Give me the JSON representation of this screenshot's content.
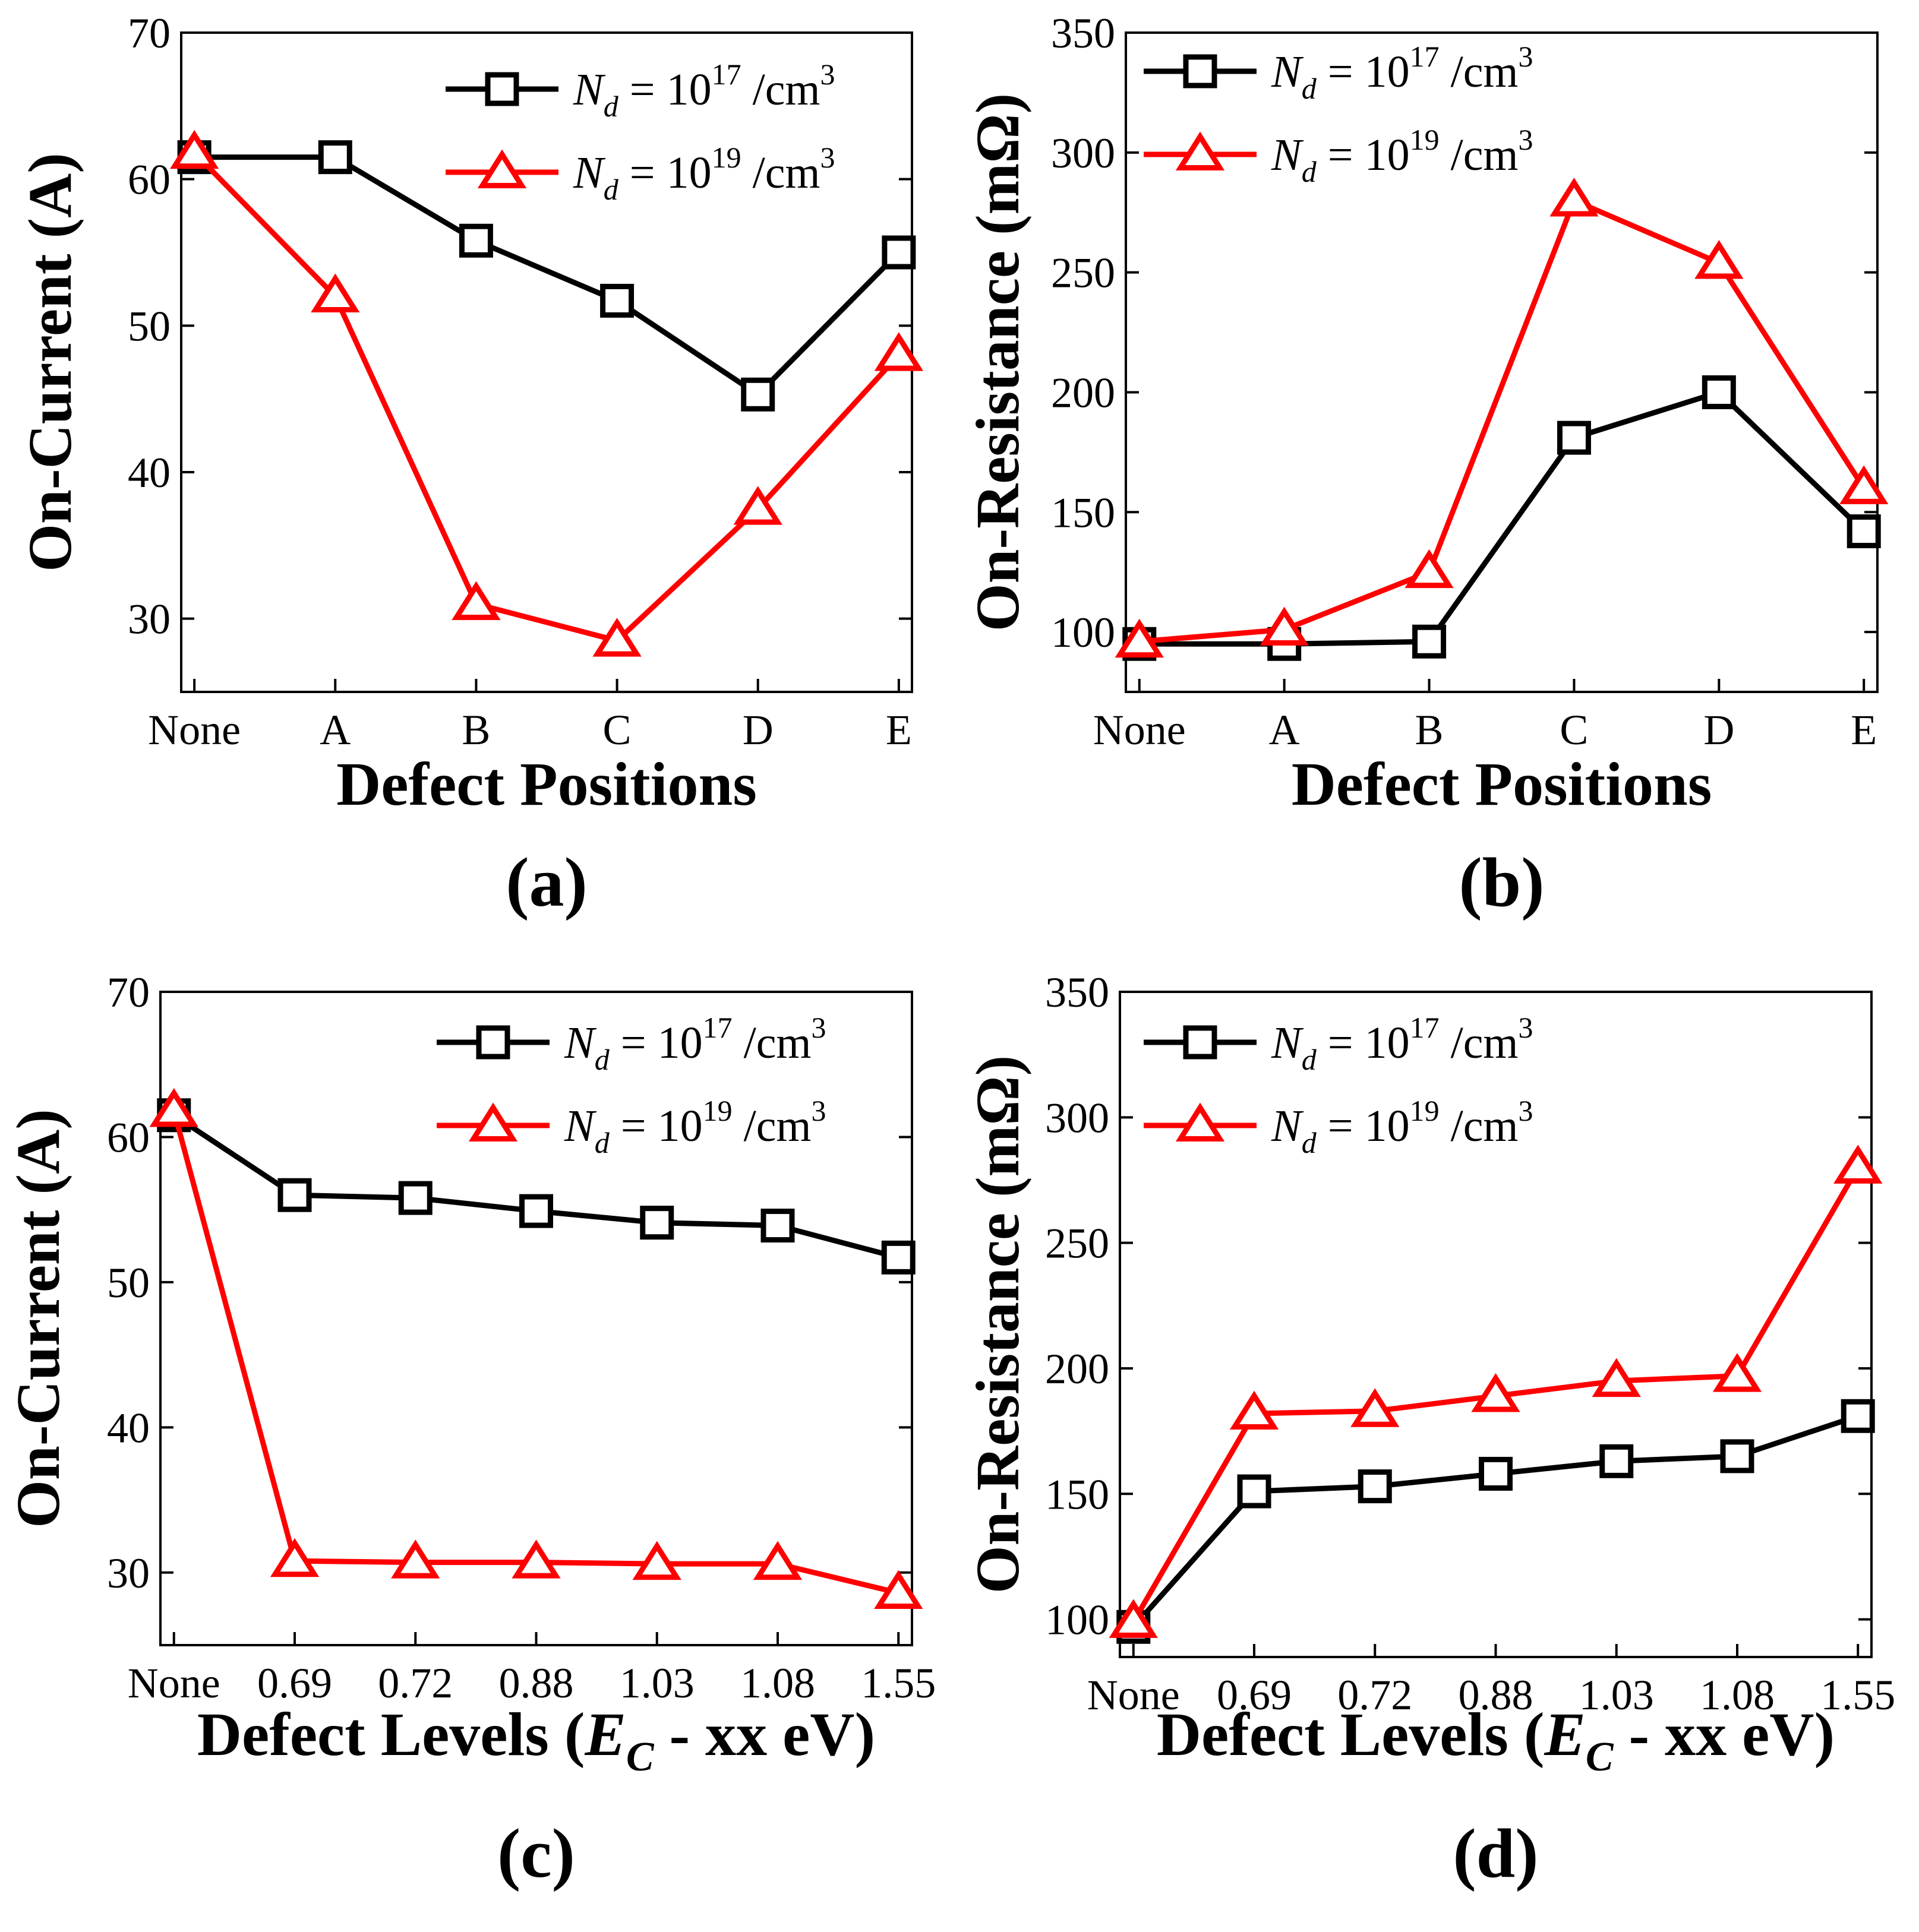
{
  "chart_data": [
    {
      "type": "line",
      "panel_label": "(a)",
      "xlabel": "Defect Positions",
      "ylabel": "On-Current (A)",
      "categories": [
        "None",
        "A",
        "B",
        "C",
        "D",
        "E"
      ],
      "ylim": [
        25,
        70
      ],
      "yticks": [
        30,
        40,
        50,
        60,
        70
      ],
      "grid": false,
      "legend_position": "top-right",
      "series": [
        {
          "legend_var": "N",
          "legend_sub": "d",
          "legend_mid": " = 10",
          "legend_sup": "17",
          "legend_unit": " /cm",
          "legend_unit_sup": "3",
          "marker": "square",
          "color": "#000000",
          "values": [
            61.5,
            61.5,
            55.8,
            51.7,
            45.3,
            55.0
          ]
        },
        {
          "legend_var": "N",
          "legend_sub": "d",
          "legend_mid": " = 10",
          "legend_sup": "19",
          "legend_unit": " /cm",
          "legend_unit_sup": "3",
          "marker": "triangle",
          "color": "#ff0000",
          "values": [
            61.8,
            52.0,
            31.0,
            28.5,
            37.5,
            48.0
          ]
        }
      ]
    },
    {
      "type": "line",
      "panel_label": "(b)",
      "xlabel": "Defect Positions",
      "ylabel": "On-Resistance (mΩ)",
      "categories": [
        "None",
        "A",
        "B",
        "C",
        "D",
        "E"
      ],
      "ylim": [
        75,
        350
      ],
      "yticks": [
        100,
        150,
        200,
        250,
        300,
        350
      ],
      "grid": false,
      "legend_position": "top-left",
      "series": [
        {
          "legend_var": "N",
          "legend_sub": "d",
          "legend_mid": " = 10",
          "legend_sup": "17",
          "legend_unit": " /cm",
          "legend_unit_sup": "3",
          "marker": "square",
          "color": "#000000",
          "values": [
            95,
            95,
            96,
            181,
            200,
            142
          ]
        },
        {
          "legend_var": "N",
          "legend_sub": "d",
          "legend_mid": " = 10",
          "legend_sup": "19",
          "legend_unit": " /cm",
          "legend_unit_sup": "3",
          "marker": "triangle",
          "color": "#ff0000",
          "values": [
            96,
            101,
            125,
            280,
            254,
            160
          ]
        }
      ]
    },
    {
      "type": "line",
      "panel_label": "(c)",
      "xlabel_main": "Defect Levels (",
      "xlabel_var": "E",
      "xlabel_sub": "C",
      "xlabel_tail": " - xx eV)",
      "ylabel": "On-Current (A)",
      "categories": [
        "None",
        "0.69",
        "0.72",
        "0.88",
        "1.03",
        "1.08",
        "1.55"
      ],
      "ylim": [
        25,
        70
      ],
      "yticks": [
        30,
        40,
        50,
        60,
        70
      ],
      "grid": false,
      "legend_position": "top-right",
      "series": [
        {
          "legend_var": "N",
          "legend_sub": "d",
          "legend_mid": " = 10",
          "legend_sup": "17",
          "legend_unit": " /cm",
          "legend_unit_sup": "3",
          "marker": "square",
          "color": "#000000",
          "values": [
            61.5,
            56.0,
            55.8,
            54.9,
            54.1,
            53.9,
            51.7
          ]
        },
        {
          "legend_var": "N",
          "legend_sub": "d",
          "legend_mid": " = 10",
          "legend_sup": "19",
          "legend_unit": " /cm",
          "legend_unit_sup": "3",
          "marker": "triangle",
          "color": "#ff0000",
          "values": [
            61.8,
            30.8,
            30.7,
            30.7,
            30.6,
            30.6,
            28.6
          ]
        }
      ]
    },
    {
      "type": "line",
      "panel_label": "(d)",
      "xlabel_main": "Defect Levels (",
      "xlabel_var": "E",
      "xlabel_sub": "C",
      "xlabel_tail": " - xx eV)",
      "ylabel": "On-Resistance (mΩ)",
      "categories": [
        "None",
        "0.69",
        "0.72",
        "0.88",
        "1.03",
        "1.08",
        "1.55"
      ],
      "ylim": [
        85,
        350
      ],
      "yticks": [
        100,
        150,
        200,
        250,
        300,
        350
      ],
      "grid": false,
      "legend_position": "top-left",
      "series": [
        {
          "legend_var": "N",
          "legend_sub": "d",
          "legend_mid": " = 10",
          "legend_sup": "17",
          "legend_unit": " /cm",
          "legend_unit_sup": "3",
          "marker": "square",
          "color": "#000000",
          "values": [
            97,
            151,
            153,
            158,
            163,
            165,
            181
          ]
        },
        {
          "legend_var": "N",
          "legend_sub": "d",
          "legend_mid": " = 10",
          "legend_sup": "19",
          "legend_unit": " /cm",
          "legend_unit_sup": "3",
          "marker": "triangle",
          "color": "#ff0000",
          "values": [
            99,
            182,
            183,
            189,
            195,
            197,
            280
          ]
        }
      ]
    }
  ]
}
